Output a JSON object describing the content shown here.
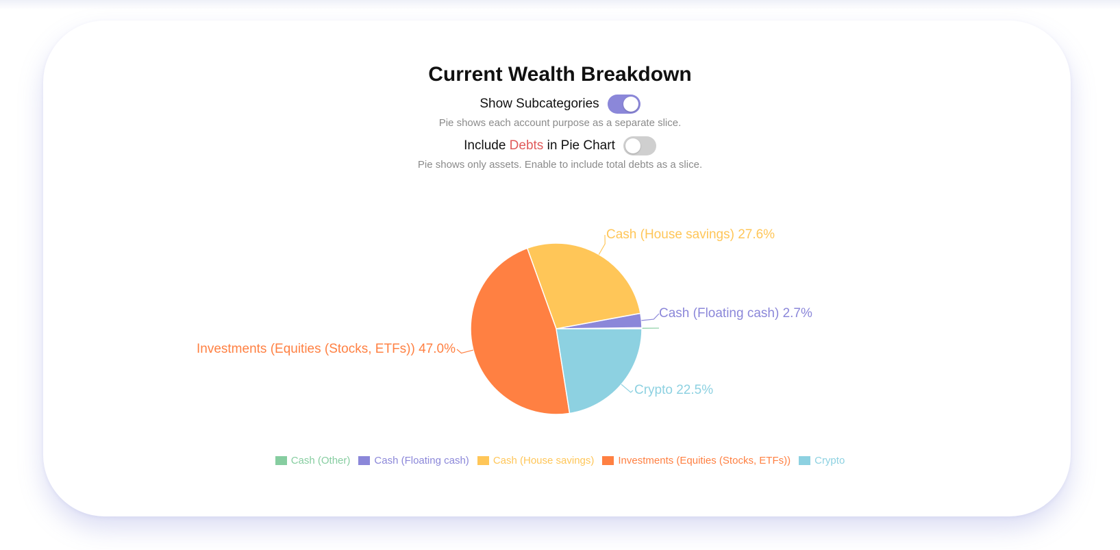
{
  "card": {
    "title": "Current Wealth Breakdown",
    "toggles": [
      {
        "label": "Show Subcategories",
        "on": true,
        "description": "Pie shows each account purpose as a separate slice."
      },
      {
        "label_before": "Include ",
        "label_highlight": "Debts",
        "label_after": " in Pie Chart",
        "on": false,
        "description": "Pie shows only assets. Enable to include total debts as a slice."
      }
    ]
  },
  "colors": {
    "accent": "#8b87d9",
    "debts": "#e05a5a"
  },
  "chart_data": {
    "type": "pie",
    "slices": [
      {
        "name": "Cash (Other)",
        "value": 0.2,
        "label": "",
        "color": "#86cda0"
      },
      {
        "name": "Cash (Floating cash)",
        "value": 2.7,
        "label": "Cash (Floating cash) 2.7%",
        "color": "#8b87d9"
      },
      {
        "name": "Cash (House savings)",
        "value": 27.6,
        "label": "Cash (House savings) 27.6%",
        "color": "#ffc658"
      },
      {
        "name": "Investments (Equities (Stocks, ETFs))",
        "value": 47.0,
        "label": "Investments (Equities (Stocks, ETFs)) 47.0%",
        "color": "#ff8042"
      },
      {
        "name": "Crypto",
        "value": 22.5,
        "label": "Crypto 22.5%",
        "color": "#8dd1e1"
      }
    ],
    "legend": [
      "Cash (Other)",
      "Cash (Floating cash)",
      "Cash (House savings)",
      "Investments (Equities (Stocks, ETFs))",
      "Crypto"
    ],
    "legend_position": "bottom"
  }
}
